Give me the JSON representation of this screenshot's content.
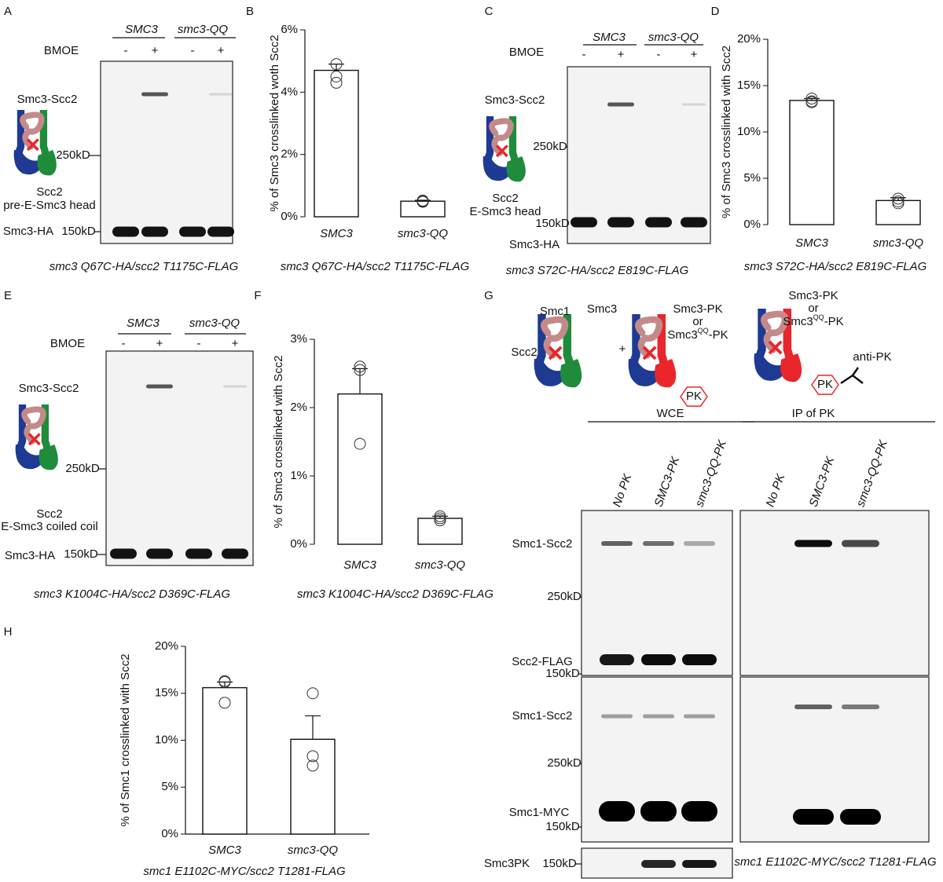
{
  "panels": {
    "A": {
      "letter": "A",
      "strains": [
        "SMC3",
        "smc3-QQ"
      ],
      "treatment": "BMOE",
      "lanes": [
        "-",
        "+",
        "-",
        "+"
      ],
      "bands": [
        "Smc3-Scc2",
        "Smc3-HA"
      ],
      "markers": [
        "250kD",
        "150kD"
      ],
      "diagram": [
        "Scc2",
        "pre-E-Smc3 head"
      ],
      "caption": "smc3 Q67C-HA/scc2 T1175C-FLAG"
    },
    "C": {
      "letter": "C",
      "strains": [
        "SMC3",
        "smc3-QQ"
      ],
      "treatment": "BMOE",
      "lanes": [
        "-",
        "+",
        "-",
        "+"
      ],
      "bands": [
        "Smc3-Scc2",
        "Smc3-HA"
      ],
      "markers": [
        "250kD",
        "150kD"
      ],
      "diagram": [
        "Scc2",
        "E-Smc3 head"
      ],
      "caption": "smc3 S72C-HA/scc2 E819C-FLAG"
    },
    "E": {
      "letter": "E",
      "strains": [
        "SMC3",
        "smc3-QQ"
      ],
      "treatment": "BMOE",
      "lanes": [
        "-",
        "+",
        "-",
        "+"
      ],
      "bands": [
        "Smc3-Scc2",
        "Smc3-HA"
      ],
      "markers": [
        "250kD",
        "150kD"
      ],
      "diagram": [
        "Scc2",
        "E-Smc3 coiled coil"
      ],
      "caption": "smc3 K1004C-HA/scc2 D369C-FLAG"
    },
    "G": {
      "letter": "G",
      "cartoon": {
        "smc1": "Smc1",
        "smc3": "Smc3",
        "scc2": "Scc2",
        "plus": "+",
        "variants": [
          {
            "wt": "Smc3-PK",
            "or": "or",
            "qq": [
              "Smc3",
              "QQ",
              "-PK"
            ]
          },
          {
            "wt": "Smc3-PK",
            "or": "or",
            "qq": [
              "Smc3",
              "QQ",
              "-PK"
            ]
          }
        ],
        "tag": [
          "PK",
          "PK"
        ],
        "antibody": "anti-PK"
      },
      "groups": [
        "WCE",
        "IP of PK"
      ],
      "lanes": [
        "No PK",
        "SMC3-PK",
        "smc3-QQ-PK"
      ],
      "bands": [
        "Smc1-Scc2",
        "Scc2-FLAG",
        "Smc1-Scc2",
        "Smc1-MYC",
        "Smc3PK"
      ],
      "markers": [
        "250kD",
        "150kD",
        "250kD",
        "150kD",
        "150kD"
      ],
      "caption": "smc1 E1102C-MYC/scc2 T1281-FLAG"
    }
  },
  "chart_data": [
    {
      "type": "bar",
      "panel": "B",
      "y_label": "% of Smc3 crosslinked woth Scc2",
      "caption": "smc3 Q67C-HA/scc2 T1175C-FLAG",
      "categories": [
        "SMC3",
        "smc3-QQ"
      ],
      "values": [
        4.7,
        0.5
      ],
      "errors": [
        0.2,
        0.03
      ],
      "points": [
        [
          4.9,
          4.5,
          4.3
        ],
        [
          0.52,
          0.5,
          0.48
        ]
      ],
      "color": "#ffffff",
      "ylim": [
        0,
        6
      ],
      "yticks": [
        {
          "value": 0,
          "label": "0%"
        },
        {
          "value": 2,
          "label": "2%"
        },
        {
          "value": 4,
          "label": "4%"
        },
        {
          "value": 6,
          "label": "6%"
        }
      ]
    },
    {
      "type": "bar",
      "panel": "D",
      "y_label": "% of Smc3 crosslinked with Scc2",
      "caption": "smc3 S72C-HA/scc2 E819C-FLAG",
      "categories": [
        "SMC3",
        "smc3-QQ"
      ],
      "values": [
        13.4,
        2.6
      ],
      "errors": [
        0.2,
        0.3
      ],
      "points": [
        [
          13.6,
          13.3,
          13.2
        ],
        [
          2.8,
          2.5,
          2.3
        ]
      ],
      "color": "#ffffff",
      "ylim": [
        0,
        20
      ],
      "yticks": [
        {
          "value": 0,
          "label": "0%"
        },
        {
          "value": 5,
          "label": "5%"
        },
        {
          "value": 10,
          "label": "10%"
        },
        {
          "value": 15,
          "label": "15%"
        },
        {
          "value": 20,
          "label": "20%"
        }
      ]
    },
    {
      "type": "bar",
      "panel": "F",
      "y_label": "% of Smc3 crosslinked with Scc2",
      "caption": "smc3 K1004C-HA/scc2 D369C-FLAG",
      "categories": [
        "SMC3",
        "smc3-QQ"
      ],
      "values": [
        2.2,
        0.38
      ],
      "errors": [
        0.37,
        0.03
      ],
      "points": [
        [
          2.6,
          2.55,
          1.47
        ],
        [
          0.41,
          0.38,
          0.35
        ]
      ],
      "color": "#ffffff",
      "ylim": [
        0,
        3
      ],
      "yticks": [
        {
          "value": 0,
          "label": "0%"
        },
        {
          "value": 1,
          "label": "1%"
        },
        {
          "value": 2,
          "label": "2%"
        },
        {
          "value": 3,
          "label": "3%"
        }
      ]
    },
    {
      "type": "bar",
      "panel": "H",
      "y_label": "% of Smc1 crosslinked with Scc2",
      "caption": "smc1 E1102C-MYC/scc2 T1281-FLAG",
      "categories": [
        "SMC3",
        "smc3-QQ"
      ],
      "values": [
        15.6,
        10.1
      ],
      "errors": [
        0.6,
        2.5
      ],
      "points": [
        [
          16.2,
          16.3,
          14.0
        ],
        [
          15.0,
          8.3,
          7.3
        ]
      ],
      "color": "#ffffff",
      "ylim": [
        0,
        20
      ],
      "yticks": [
        {
          "value": 0,
          "label": "0%"
        },
        {
          "value": 5,
          "label": "5%"
        },
        {
          "value": 10,
          "label": "10%"
        },
        {
          "value": 15,
          "label": "15%"
        },
        {
          "value": 20,
          "label": "20%"
        }
      ]
    }
  ]
}
